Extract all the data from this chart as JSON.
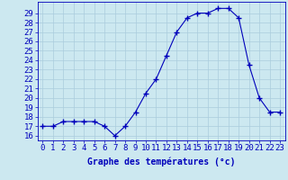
{
  "x": [
    0,
    1,
    2,
    3,
    4,
    5,
    6,
    7,
    8,
    9,
    10,
    11,
    12,
    13,
    14,
    15,
    16,
    17,
    18,
    19,
    20,
    21,
    22,
    23
  ],
  "y": [
    17.0,
    17.0,
    17.5,
    17.5,
    17.5,
    17.5,
    17.0,
    16.0,
    17.0,
    18.5,
    20.5,
    22.0,
    24.5,
    27.0,
    28.5,
    29.0,
    29.0,
    29.5,
    29.5,
    28.5,
    23.5,
    20.0,
    18.5,
    18.5
  ],
  "xlabel": "Graphe des températures (°c)",
  "ylim": [
    15.5,
    30.2
  ],
  "xlim": [
    -0.5,
    23.5
  ],
  "yticks": [
    16,
    17,
    18,
    19,
    20,
    21,
    22,
    23,
    24,
    25,
    26,
    27,
    28,
    29
  ],
  "xticks": [
    0,
    1,
    2,
    3,
    4,
    5,
    6,
    7,
    8,
    9,
    10,
    11,
    12,
    13,
    14,
    15,
    16,
    17,
    18,
    19,
    20,
    21,
    22,
    23
  ],
  "line_color": "#0000bb",
  "marker": "+",
  "marker_size": 4,
  "bg_color": "#cce8f0",
  "grid_color": "#aaccdd",
  "label_color": "#0000bb",
  "tick_color": "#0000bb",
  "xlabel_fontsize": 7,
  "tick_fontsize": 6.5
}
